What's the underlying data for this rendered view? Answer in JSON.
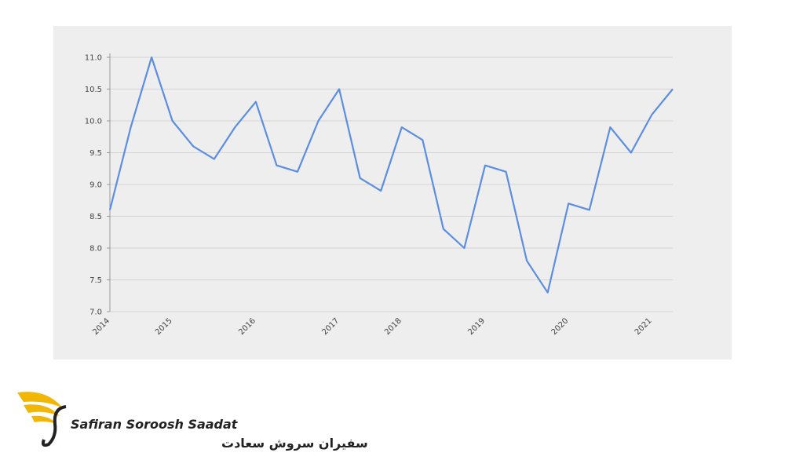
{
  "chart_data": {
    "type": "line",
    "categories": [
      "2014",
      null,
      null,
      "2015",
      null,
      null,
      null,
      "2016",
      null,
      null,
      null,
      "2017",
      null,
      null,
      "2018",
      null,
      null,
      null,
      "2019",
      null,
      null,
      null,
      "2020",
      null,
      null,
      null,
      "2021",
      null
    ],
    "series": [
      {
        "color": "#5b8ee0",
        "values": [
          8.6,
          9.9,
          11.0,
          10.0,
          9.6,
          9.4,
          9.9,
          10.3,
          9.3,
          9.2,
          10.0,
          10.5,
          9.1,
          8.9,
          9.9,
          9.7,
          8.3,
          8.0,
          9.3,
          9.2,
          7.8,
          7.3,
          8.7,
          8.6,
          9.9,
          9.5,
          10.1,
          10.5
        ]
      }
    ],
    "ylim": [
      7,
      11
    ],
    "yticks": [
      {
        "value": 7,
        "label": "7.0"
      },
      7.5,
      {
        "value": 8,
        "label": "8.0"
      },
      8.5,
      {
        "value": 9,
        "label": "9.0"
      },
      9.5,
      {
        "value": 10,
        "label": "10.0"
      },
      10.5,
      {
        "value": 11,
        "label": "11.0"
      }
    ],
    "grid": true
  },
  "logo": {
    "name": "Safiran Soroosh Saadat",
    "name_fa": "سفیران سروش سعادت"
  }
}
